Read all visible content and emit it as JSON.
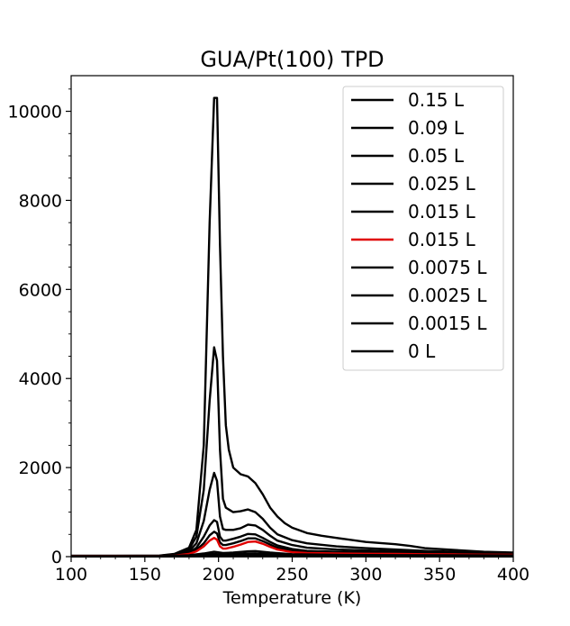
{
  "chart_data": {
    "type": "line",
    "title": "GUA/Pt(100) TPD",
    "xlabel": "Temperature (K)",
    "ylabel": "",
    "xlim": [
      100,
      400
    ],
    "ylim": [
      0,
      10800
    ],
    "xticks": [
      100,
      150,
      200,
      250,
      300,
      350,
      400
    ],
    "yticks": [
      0,
      2000,
      4000,
      6000,
      8000,
      10000
    ],
    "grid": false,
    "legend_position": "top-right",
    "series": [
      {
        "name": "0.15 L",
        "color": "#000000",
        "x": [
          100,
          160,
          170,
          180,
          185,
          190,
          194,
          197,
          199,
          201,
          203,
          205,
          207,
          210,
          215,
          220,
          225,
          230,
          235,
          240,
          245,
          250,
          260,
          270,
          280,
          300,
          320,
          330,
          340,
          360,
          380,
          400
        ],
        "y": [
          20,
          25,
          60,
          200,
          600,
          2500,
          7500,
          10300,
          10300,
          7000,
          4500,
          2950,
          2400,
          2000,
          1850,
          1800,
          1650,
          1400,
          1100,
          900,
          750,
          650,
          530,
          470,
          420,
          330,
          280,
          240,
          190,
          150,
          110,
          90
        ]
      },
      {
        "name": "0.09 L",
        "color": "#000000",
        "x": [
          100,
          160,
          170,
          180,
          185,
          190,
          194,
          197,
          199,
          201,
          203,
          205,
          210,
          215,
          220,
          225,
          230,
          235,
          240,
          250,
          260,
          280,
          300,
          320,
          340,
          360,
          380,
          400
        ],
        "y": [
          15,
          20,
          50,
          160,
          450,
          1500,
          3500,
          4700,
          4400,
          2400,
          1300,
          1100,
          1000,
          1020,
          1060,
          1000,
          850,
          650,
          500,
          370,
          300,
          230,
          190,
          160,
          130,
          110,
          90,
          70
        ]
      },
      {
        "name": "0.05 L",
        "color": "#000000",
        "x": [
          100,
          160,
          170,
          180,
          185,
          190,
          194,
          197,
          199,
          201,
          203,
          205,
          210,
          215,
          220,
          225,
          230,
          235,
          240,
          250,
          260,
          280,
          300,
          320,
          340,
          360,
          380,
          400
        ],
        "y": [
          15,
          18,
          40,
          120,
          300,
          800,
          1500,
          1880,
          1700,
          900,
          620,
          600,
          600,
          640,
          720,
          700,
          600,
          470,
          360,
          260,
          200,
          160,
          140,
          120,
          100,
          90,
          70,
          60
        ]
      },
      {
        "name": "0.025 L",
        "color": "#000000",
        "x": [
          100,
          160,
          170,
          180,
          185,
          190,
          194,
          197,
          199,
          201,
          203,
          205,
          210,
          215,
          220,
          225,
          230,
          235,
          240,
          250,
          260,
          280,
          300,
          320,
          340,
          360,
          380,
          400
        ],
        "y": [
          12,
          15,
          30,
          90,
          200,
          450,
          700,
          820,
          780,
          450,
          360,
          360,
          400,
          450,
          510,
          500,
          420,
          330,
          250,
          170,
          130,
          110,
          100,
          90,
          80,
          70,
          60,
          50
        ]
      },
      {
        "name": "0.015 L",
        "color": "#000000",
        "x": [
          100,
          160,
          170,
          180,
          185,
          190,
          194,
          197,
          199,
          201,
          203,
          205,
          210,
          215,
          220,
          225,
          230,
          235,
          240,
          250,
          260,
          280,
          300,
          320,
          340,
          360,
          380,
          400
        ],
        "y": [
          10,
          12,
          25,
          70,
          150,
          300,
          480,
          560,
          520,
          320,
          260,
          260,
          300,
          350,
          410,
          410,
          350,
          270,
          200,
          130,
          100,
          90,
          80,
          70,
          60,
          55,
          50,
          45
        ]
      },
      {
        "name": "0.015 L",
        "color": "#e00000",
        "x": [
          100,
          160,
          170,
          180,
          185,
          190,
          194,
          197,
          199,
          201,
          203,
          205,
          210,
          215,
          220,
          225,
          230,
          235,
          240,
          250,
          260,
          280,
          300,
          320,
          340,
          360,
          380,
          400
        ],
        "y": [
          10,
          12,
          20,
          60,
          120,
          230,
          360,
          420,
          380,
          230,
          180,
          180,
          220,
          270,
          330,
          340,
          290,
          220,
          160,
          100,
          80,
          70,
          65,
          60,
          55,
          50,
          45,
          40
        ]
      },
      {
        "name": "0.0075 L",
        "color": "#000000",
        "x": [
          100,
          160,
          180,
          190,
          197,
          203,
          210,
          220,
          225,
          235,
          250,
          280,
          320,
          360,
          400
        ],
        "y": [
          8,
          10,
          30,
          70,
          110,
          80,
          90,
          120,
          125,
          90,
          55,
          40,
          35,
          30,
          28
        ]
      },
      {
        "name": "0.0025 L",
        "color": "#000000",
        "x": [
          100,
          160,
          180,
          190,
          197,
          203,
          210,
          220,
          225,
          235,
          250,
          280,
          320,
          360,
          400
        ],
        "y": [
          6,
          8,
          20,
          40,
          60,
          45,
          50,
          70,
          75,
          55,
          35,
          28,
          25,
          22,
          20
        ]
      },
      {
        "name": "0.0015 L",
        "color": "#000000",
        "x": [
          100,
          160,
          180,
          190,
          197,
          203,
          210,
          220,
          225,
          235,
          250,
          280,
          320,
          360,
          400
        ],
        "y": [
          5,
          6,
          12,
          25,
          35,
          28,
          30,
          40,
          42,
          32,
          22,
          18,
          16,
          15,
          14
        ]
      },
      {
        "name": "0 L",
        "color": "#000000",
        "x": [
          100,
          200,
          300,
          400
        ],
        "y": [
          5,
          6,
          6,
          5
        ]
      }
    ]
  }
}
